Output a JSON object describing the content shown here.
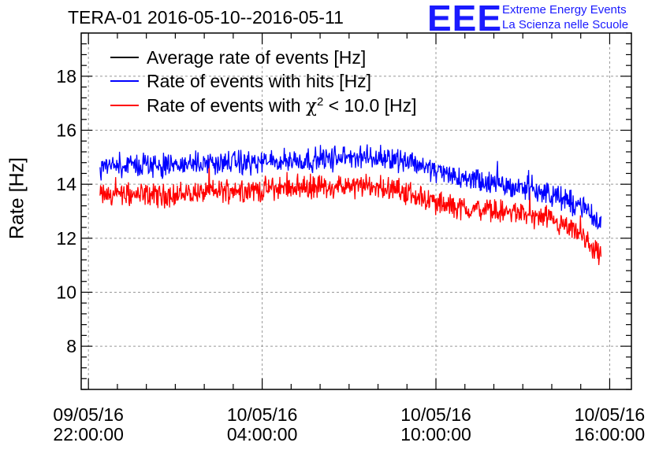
{
  "header": {
    "title": "TERA-01 2016-05-10--2016-05-11",
    "logo": "EEE",
    "logo_line1": "Extreme Energy Events",
    "logo_line2": "La Scienza nelle Scuole"
  },
  "colors": {
    "avg": "#000000",
    "hits": "#0000ff",
    "chi2": "#ff0000",
    "grid": "#999999"
  },
  "chart_data": {
    "type": "line",
    "title": "TERA-01 2016-05-10--2016-05-11",
    "ylabel": "Rate [Hz]",
    "xlabel": "",
    "ylim": [
      6.4,
      19.6
    ],
    "yticks": [
      8,
      10,
      12,
      14,
      16,
      18
    ],
    "xlim_hours": [
      -0.25,
      18.75
    ],
    "xticks": [
      {
        "hour": 0,
        "line1": "09/05/16",
        "line2": "22:00:00"
      },
      {
        "hour": 6,
        "line1": "10/05/16",
        "line2": "04:00:00"
      },
      {
        "hour": 12,
        "line1": "10/05/16",
        "line2": "10:00:00"
      },
      {
        "hour": 18,
        "line1": "10/05/16",
        "line2": "16:00:00"
      }
    ],
    "legend_position": "top-left",
    "time_range_hours": [
      0.4,
      17.7
    ],
    "series": [
      {
        "name": "Average rate of events [Hz]",
        "color": "#000000",
        "values": []
      },
      {
        "name": "Rate of events with hits [Hz]",
        "color": "#0000ff",
        "hours": [
          0.4,
          1,
          2,
          3,
          4,
          5,
          6,
          7,
          8,
          9,
          10,
          11,
          12,
          13,
          14,
          15,
          16,
          17,
          17.7
        ],
        "values": [
          14.6,
          14.7,
          14.7,
          14.7,
          14.8,
          14.8,
          14.8,
          14.9,
          14.9,
          15.0,
          15.0,
          14.9,
          14.5,
          14.2,
          14.0,
          13.9,
          13.6,
          13.2,
          12.5
        ]
      },
      {
        "name": "Rate of events with",
        "suffix": " < 10.0 [Hz]",
        "color": "#ff0000",
        "hours": [
          0.4,
          1,
          2,
          3,
          4,
          5,
          6,
          7,
          8,
          9,
          10,
          11,
          12,
          13,
          14,
          15,
          16,
          17,
          17.7
        ],
        "values": [
          13.6,
          13.6,
          13.6,
          13.6,
          13.7,
          13.8,
          13.8,
          13.9,
          13.9,
          13.9,
          13.9,
          13.7,
          13.3,
          13.1,
          13.0,
          12.9,
          12.6,
          12.1,
          11.3
        ]
      }
    ],
    "noise_amplitude": 0.45
  }
}
